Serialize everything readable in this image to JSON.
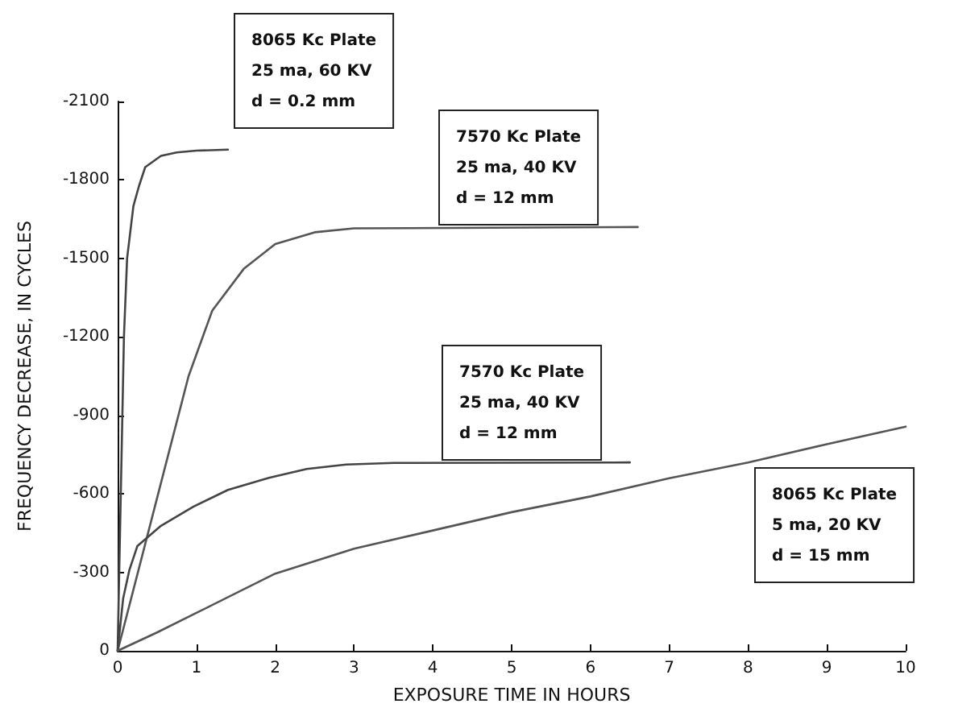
{
  "chart_data": {
    "type": "line",
    "xlabel": "EXPOSURE TIME IN HOURS",
    "ylabel": "FREQUENCY DECREASE, IN CYCLES",
    "xlim": [
      0,
      10
    ],
    "xticks": [
      0,
      1,
      2,
      3,
      4,
      5,
      6,
      7,
      8,
      9,
      10
    ],
    "ylim": [
      0,
      -2100
    ],
    "yticks": [
      0,
      -300,
      -600,
      -900,
      -1200,
      -1500,
      -1800,
      -2100
    ],
    "grid": false,
    "marker": "none",
    "line_style": "solid",
    "series": [
      {
        "color": "#444444",
        "x": [
          0,
          0.04,
          0.08,
          0.12,
          0.2,
          0.27,
          0.35,
          0.55,
          0.75,
          1.0,
          1.4
        ],
        "values": [
          0,
          -600,
          -1200,
          -1500,
          -1700,
          -1776,
          -1849,
          -1892,
          -1905,
          -1912,
          -1916
        ]
      },
      {
        "color": "#555555",
        "x": [
          0,
          0.3,
          0.6,
          0.9,
          1.2,
          1.6,
          2.0,
          2.5,
          3.0,
          6.6
        ],
        "values": [
          0,
          -350,
          -700,
          -1050,
          -1300,
          -1460,
          -1555,
          -1600,
          -1615,
          -1620
        ]
      },
      {
        "color": "#444444",
        "x": [
          0,
          0.07,
          0.15,
          0.25,
          0.55,
          0.96,
          1.4,
          1.92,
          2.4,
          2.9,
          3.5,
          6.5
        ],
        "values": [
          0,
          -200,
          -310,
          -400,
          -478,
          -551,
          -615,
          -661,
          -695,
          -712,
          -718,
          -720
        ]
      },
      {
        "color": "#555555",
        "x": [
          0,
          0.5,
          1,
          2,
          3,
          4,
          5,
          6,
          7,
          8,
          9,
          10
        ],
        "values": [
          0,
          -70,
          -145,
          -295,
          -390,
          -460,
          -530,
          -590,
          -660,
          -720,
          -790,
          -857
        ]
      }
    ],
    "annotations": [
      "8065 Kc Plate\n25 ma, 60 KV\nd = 0.2 mm",
      "7570 Kc Plate\n25 ma, 40 KV\nd = 12 mm",
      "7570 Kc Plate\n25 ma, 40 KV\nd = 12 mm",
      "8065 Kc Plate\n5 ma, 20 KV\nd = 15 mm"
    ]
  }
}
